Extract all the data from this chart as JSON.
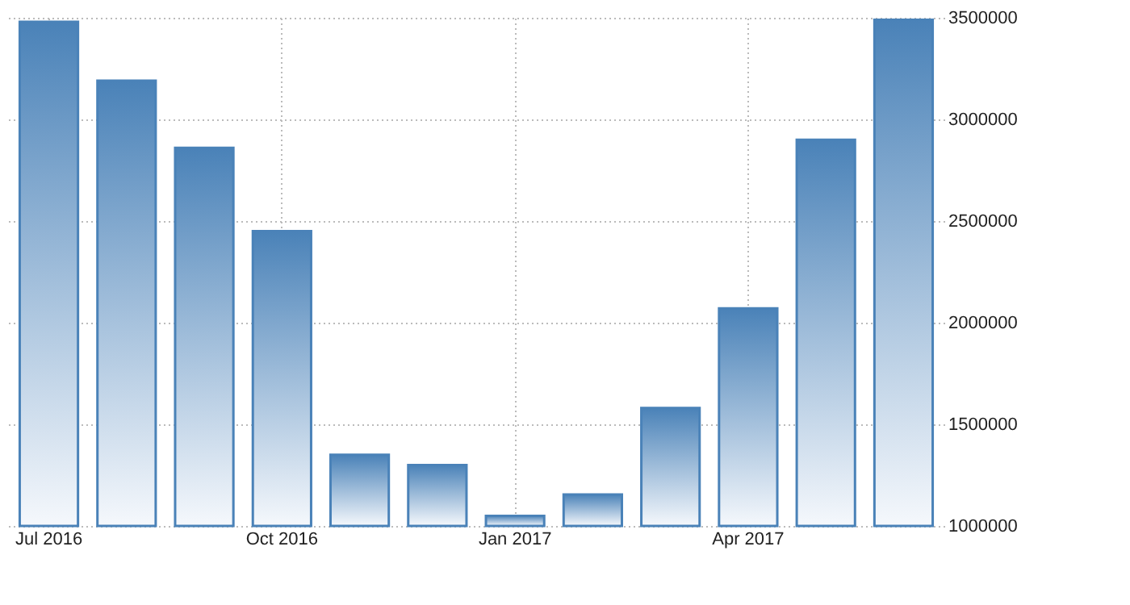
{
  "chart_data": {
    "type": "bar",
    "categories": [
      "Jul 2016",
      null,
      null,
      "Oct 2016",
      null,
      null,
      "Jan 2017",
      null,
      null,
      "Apr 2017",
      null,
      null
    ],
    "values": [
      3480000,
      3190000,
      2860000,
      2450000,
      1350000,
      1300000,
      1050000,
      1155000,
      1580000,
      2070000,
      2900000,
      3490000
    ],
    "color": "#4a82b8",
    "ylim": [
      1000000,
      3500000
    ],
    "yticks": [
      1000000,
      1500000,
      2000000,
      2500000,
      3000000,
      3500000
    ],
    "grid": true
  }
}
